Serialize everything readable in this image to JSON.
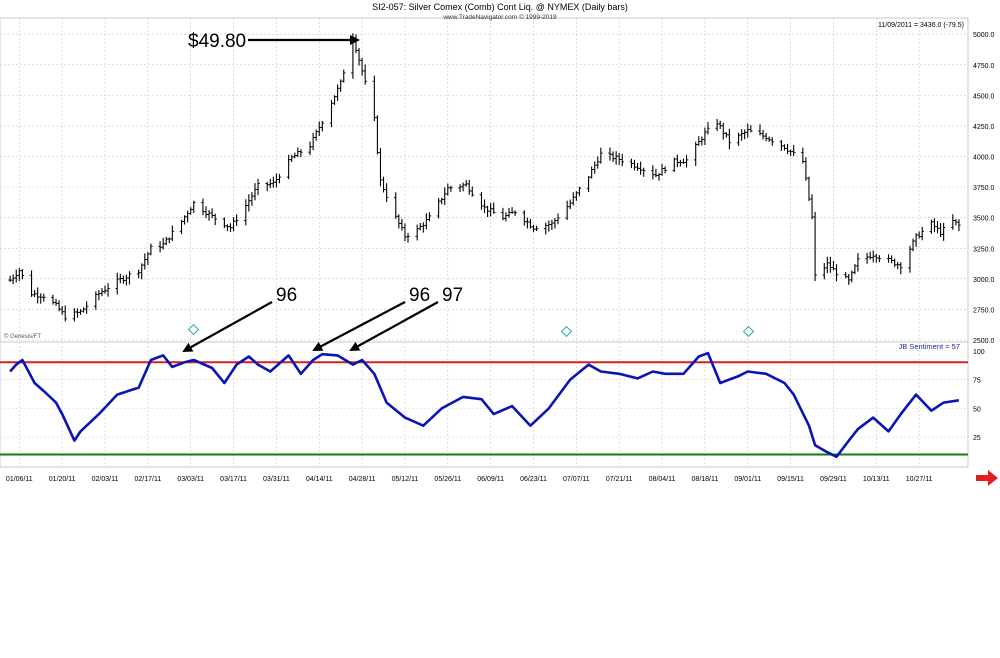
{
  "header": {
    "title": "SI2-057:  Silver Comex (Comb) Cont Liq. @ NYMEX  (Daily bars)",
    "subtitle": "www.TradeNavigator.com © 1999-2019",
    "last_quote": "11/09/2011 = 3436.0 (-79.5)"
  },
  "watermark": "© Genesis/FT",
  "indicator_label": "JB Sentiment = 57",
  "annotations": {
    "price_peak": "$49.80",
    "sentiment_a": "96",
    "sentiment_b": "96",
    "sentiment_c": "97"
  },
  "colors": {
    "price_bars": "#000000",
    "sentiment_line": "#0a14b4",
    "upper_threshold": "#d42020",
    "lower_threshold": "#1a7a1a",
    "scroll_arrow": "#e02020"
  },
  "chart_data": [
    {
      "type": "ohlc",
      "title": "SI2-057:  Silver Comex (Comb) Cont Liq. @ NYMEX  (Daily bars)",
      "ylim": [
        2500,
        5100
      ],
      "y_ticks": [
        "5000.0",
        "4750.0",
        "4500.0",
        "4250.0",
        "4000.0",
        "3750.0",
        "3500.0",
        "3250.0",
        "3000.0",
        "2750.0",
        "2500.0"
      ],
      "x_ticks": [
        "01/06/11",
        "01/20/11",
        "02/03/11",
        "02/17/11",
        "03/03/11",
        "03/17/11",
        "03/31/11",
        "04/14/11",
        "04/28/11",
        "05/12/11",
        "05/26/11",
        "06/09/11",
        "06/23/11",
        "07/07/11",
        "07/21/11",
        "08/04/11",
        "08/18/11",
        "09/01/11",
        "09/15/11",
        "09/29/11",
        "10/13/11",
        "10/27/11"
      ],
      "close_points": [
        [
          "01/03/11",
          2990
        ],
        [
          "01/06/11",
          3070
        ],
        [
          "01/10/11",
          2880
        ],
        [
          "01/14/11",
          2860
        ],
        [
          "01/18/11",
          2780
        ],
        [
          "01/21/11",
          2690
        ],
        [
          "01/26/11",
          2730
        ],
        [
          "02/01/11",
          2880
        ],
        [
          "02/07/11",
          2980
        ],
        [
          "02/14/11",
          3070
        ],
        [
          "02/18/11",
          3250
        ],
        [
          "02/22/11",
          3280
        ],
        [
          "02/28/11",
          3470
        ],
        [
          "03/04/11",
          3620
        ],
        [
          "03/10/11",
          3510
        ],
        [
          "03/16/11",
          3420
        ],
        [
          "03/21/11",
          3600
        ],
        [
          "03/25/11",
          3760
        ],
        [
          "03/30/11",
          3780
        ],
        [
          "04/05/11",
          3990
        ],
        [
          "04/11/11",
          4090
        ],
        [
          "04/15/11",
          4290
        ],
        [
          "04/21/11",
          4600
        ],
        [
          "04/25/11",
          4980
        ],
        [
          "04/28/11",
          4700
        ],
        [
          "05/02/11",
          4300
        ],
        [
          "05/04/11",
          3800
        ],
        [
          "05/09/11",
          3500
        ],
        [
          "05/12/11",
          3350
        ],
        [
          "05/16/11",
          3400
        ],
        [
          "05/20/11",
          3500
        ],
        [
          "05/26/11",
          3740
        ],
        [
          "06/01/11",
          3770
        ],
        [
          "06/07/11",
          3580
        ],
        [
          "06/13/11",
          3500
        ],
        [
          "06/17/11",
          3550
        ],
        [
          "06/23/11",
          3420
        ],
        [
          "06/29/11",
          3450
        ],
        [
          "07/05/11",
          3620
        ],
        [
          "07/11/11",
          3840
        ],
        [
          "07/15/11",
          4020
        ],
        [
          "07/21/11",
          3980
        ],
        [
          "07/27/11",
          3920
        ],
        [
          "08/02/11",
          3850
        ],
        [
          "08/08/11",
          3960
        ],
        [
          "08/12/11",
          3970
        ],
        [
          "08/18/11",
          4190
        ],
        [
          "08/22/11",
          4280
        ],
        [
          "08/26/11",
          4120
        ],
        [
          "09/01/11",
          4210
        ],
        [
          "09/07/11",
          4160
        ],
        [
          "09/13/11",
          4080
        ],
        [
          "09/19/11",
          3960
        ],
        [
          "09/22/11",
          3500
        ],
        [
          "09/23/11",
          3020
        ],
        [
          "09/27/11",
          3120
        ],
        [
          "09/30/11",
          3050
        ],
        [
          "10/04/11",
          2980
        ],
        [
          "10/07/11",
          3150
        ],
        [
          "10/12/11",
          3200
        ],
        [
          "10/17/11",
          3150
        ],
        [
          "10/21/11",
          3110
        ],
        [
          "10/26/11",
          3340
        ],
        [
          "10/31/11",
          3450
        ],
        [
          "11/03/11",
          3380
        ],
        [
          "11/07/11",
          3470
        ],
        [
          "11/09/11",
          3436
        ]
      ]
    },
    {
      "type": "line",
      "series": [
        {
          "name": "JB Sentiment",
          "last": 57
        }
      ],
      "ylim": [
        0,
        105
      ],
      "y_ticks": [
        "100",
        "75",
        "50",
        "25"
      ],
      "upper_threshold": 90,
      "lower_threshold": 10,
      "x_ticks": [
        "01/06/11",
        "01/20/11",
        "02/03/11",
        "02/17/11",
        "03/03/11",
        "03/17/11",
        "03/31/11",
        "04/14/11",
        "04/28/11",
        "05/12/11",
        "05/26/11",
        "06/09/11",
        "06/23/11",
        "07/07/11",
        "07/21/11",
        "08/04/11",
        "08/18/11",
        "09/01/11",
        "09/15/11",
        "09/29/11",
        "10/13/11",
        "10/27/11"
      ],
      "points": [
        [
          "01/03/11",
          82
        ],
        [
          "01/05/11",
          88
        ],
        [
          "01/07/11",
          92
        ],
        [
          "01/11/11",
          72
        ],
        [
          "01/14/11",
          65
        ],
        [
          "01/18/11",
          55
        ],
        [
          "01/20/11",
          45
        ],
        [
          "01/24/11",
          22
        ],
        [
          "01/26/11",
          30
        ],
        [
          "02/01/11",
          45
        ],
        [
          "02/07/11",
          62
        ],
        [
          "02/14/11",
          68
        ],
        [
          "02/18/11",
          92
        ],
        [
          "02/22/11",
          96
        ],
        [
          "02/25/11",
          86
        ],
        [
          "03/01/11",
          90
        ],
        [
          "03/04/11",
          92
        ],
        [
          "03/10/11",
          85
        ],
        [
          "03/14/11",
          72
        ],
        [
          "03/18/11",
          88
        ],
        [
          "03/22/11",
          95
        ],
        [
          "03/25/11",
          88
        ],
        [
          "03/29/11",
          82
        ],
        [
          "04/04/11",
          96
        ],
        [
          "04/08/11",
          80
        ],
        [
          "04/12/11",
          92
        ],
        [
          "04/15/11",
          97
        ],
        [
          "04/20/11",
          96
        ],
        [
          "04/25/11",
          88
        ],
        [
          "04/28/11",
          92
        ],
        [
          "05/02/11",
          80
        ],
        [
          "05/06/11",
          55
        ],
        [
          "05/12/11",
          42
        ],
        [
          "05/18/11",
          35
        ],
        [
          "05/24/11",
          50
        ],
        [
          "05/31/11",
          60
        ],
        [
          "06/06/11",
          58
        ],
        [
          "06/10/11",
          45
        ],
        [
          "06/16/11",
          52
        ],
        [
          "06/22/11",
          35
        ],
        [
          "06/28/11",
          50
        ],
        [
          "07/05/11",
          75
        ],
        [
          "07/11/11",
          88
        ],
        [
          "07/15/11",
          82
        ],
        [
          "07/21/11",
          80
        ],
        [
          "07/27/11",
          76
        ],
        [
          "08/01/11",
          82
        ],
        [
          "08/05/11",
          80
        ],
        [
          "08/11/11",
          80
        ],
        [
          "08/16/11",
          95
        ],
        [
          "08/19/11",
          98
        ],
        [
          "08/23/11",
          72
        ],
        [
          "08/29/11",
          78
        ],
        [
          "09/01/11",
          82
        ],
        [
          "09/07/11",
          80
        ],
        [
          "09/13/11",
          72
        ],
        [
          "09/16/11",
          62
        ],
        [
          "09/21/11",
          35
        ],
        [
          "09/23/11",
          18
        ],
        [
          "09/27/11",
          12
        ],
        [
          "09/30/11",
          8
        ],
        [
          "10/04/11",
          22
        ],
        [
          "10/07/11",
          32
        ],
        [
          "10/12/11",
          42
        ],
        [
          "10/17/11",
          30
        ],
        [
          "10/21/11",
          45
        ],
        [
          "10/26/11",
          62
        ],
        [
          "10/31/11",
          48
        ],
        [
          "11/04/11",
          55
        ],
        [
          "11/09/11",
          57
        ]
      ]
    }
  ]
}
